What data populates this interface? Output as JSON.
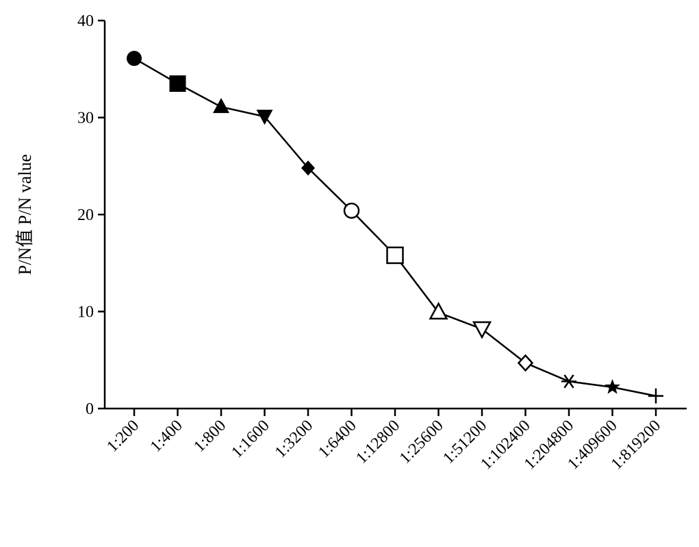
{
  "chart_data": {
    "type": "line",
    "title": "",
    "xlabel": "",
    "ylabel": "P/N值 P/N value",
    "categories": [
      "1:200",
      "1:400",
      "1:800",
      "1:1600",
      "1:3200",
      "1:6400",
      "1:12800",
      "1:25600",
      "1:51200",
      "1:102400",
      "1:204800",
      "1:409600",
      "1:819200"
    ],
    "series": [
      {
        "values": [
          36.1,
          33.5,
          31.1,
          30.1,
          24.8,
          20.4,
          15.8,
          9.9,
          8.2,
          4.7,
          2.8,
          2.2,
          1.3
        ],
        "markers": [
          "filled-circle",
          "filled-square",
          "filled-triangle-up",
          "filled-triangle-down",
          "filled-diamond",
          "open-circle",
          "open-square",
          "open-triangle-up",
          "open-triangle-down",
          "open-diamond",
          "asterisk",
          "filled-star",
          "plus"
        ],
        "color": "#000000"
      }
    ],
    "ylim": [
      0,
      40
    ],
    "yticks": [
      0,
      10,
      20,
      30,
      40
    ],
    "grid": false,
    "legend": "none"
  }
}
